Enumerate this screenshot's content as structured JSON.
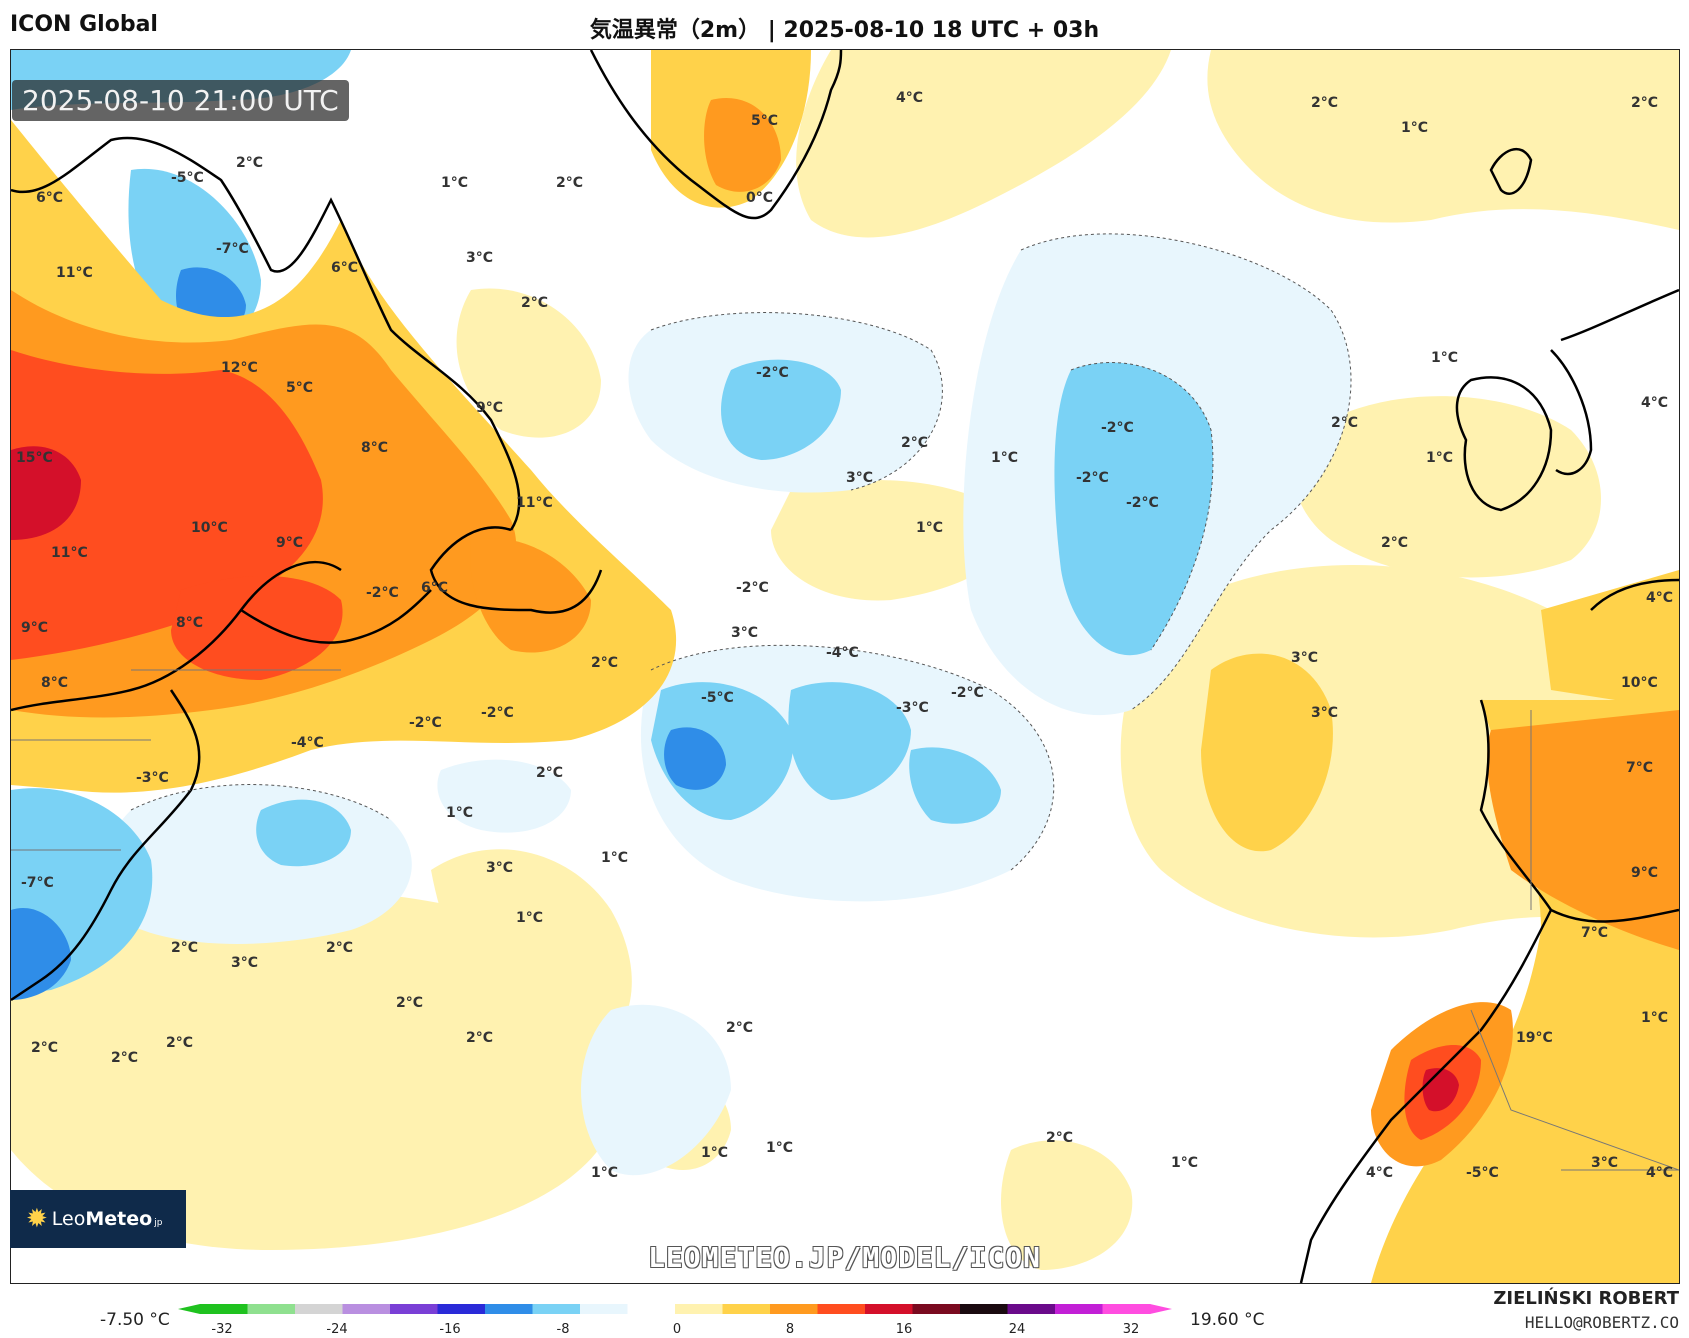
{
  "header": {
    "model": "ICON Global",
    "title": "気温異常（2m） | 2025-08-10 18 UTC + 03h"
  },
  "timestamp": "2025-08-10 21:00 UTC",
  "watermark": "LEOMETEO.JP/MODEL/ICON",
  "logo": {
    "brand_light": "Leo",
    "brand_bold": "Meteo",
    "suffix": "jp"
  },
  "author": {
    "name": "ZIELIŃSKI ROBERT",
    "email": "HELLO@ROBERTZ.CO"
  },
  "legend": {
    "min_label": "-7.50 °C",
    "max_label": "19.60 °C",
    "ticks": [
      "-32",
      "-24",
      "-16",
      "-8",
      "0",
      "8",
      "16",
      "24",
      "32"
    ],
    "colors": [
      "#1fc21f",
      "#8fe08f",
      "#d4d4d4",
      "#b98fe0",
      "#7a3fd6",
      "#2a2ad8",
      "#2f8de8",
      "#7ad2f5",
      "#e8f6fd",
      "#ffffff",
      "#fff2b0",
      "#ffd24a",
      "#ff9a1f",
      "#ff4d1f",
      "#d4102a",
      "#7a0a20",
      "#1a0a10",
      "#6a0a8a",
      "#c21fd6",
      "#ff4de0"
    ]
  },
  "map_labels": [
    {
      "text": "2°C"
    },
    {
      "text": "-5°C"
    },
    {
      "text": "6°C"
    },
    {
      "text": "-7°C"
    },
    {
      "text": "1°C"
    },
    {
      "text": "2°C"
    },
    {
      "text": "5°C"
    },
    {
      "text": "0°C"
    },
    {
      "text": "4°C"
    },
    {
      "text": "2°C"
    },
    {
      "text": "1°C"
    },
    {
      "text": "2°C"
    },
    {
      "text": "11°C"
    },
    {
      "text": "6°C"
    },
    {
      "text": "3°C"
    },
    {
      "text": "2°C"
    },
    {
      "text": "12°C"
    },
    {
      "text": "5°C"
    },
    {
      "text": "9°C"
    },
    {
      "text": "-2°C"
    },
    {
      "text": "1°C"
    },
    {
      "text": "15°C"
    },
    {
      "text": "8°C"
    },
    {
      "text": "2°C"
    },
    {
      "text": "1°C"
    },
    {
      "text": "-2°C"
    },
    {
      "text": "2°C"
    },
    {
      "text": "4°C"
    },
    {
      "text": "1°C"
    },
    {
      "text": "3°C"
    },
    {
      "text": "-2°C"
    },
    {
      "text": "-2°C"
    },
    {
      "text": "10°C"
    },
    {
      "text": "11°C"
    },
    {
      "text": "11°C"
    },
    {
      "text": "9°C"
    },
    {
      "text": "1°C"
    },
    {
      "text": "2°C"
    },
    {
      "text": "-2°C"
    },
    {
      "text": "6°C"
    },
    {
      "text": "-2°C"
    },
    {
      "text": "8°C"
    },
    {
      "text": "3°C"
    },
    {
      "text": "-4°C"
    },
    {
      "text": "4°C"
    },
    {
      "text": "9°C"
    },
    {
      "text": "2°C"
    },
    {
      "text": "3°C"
    },
    {
      "text": "8°C"
    },
    {
      "text": "-5°C"
    },
    {
      "text": "-3°C"
    },
    {
      "text": "-2°C"
    },
    {
      "text": "10°C"
    },
    {
      "text": "-2°C"
    },
    {
      "text": "-2°C"
    },
    {
      "text": "3°C"
    },
    {
      "text": "-4°C"
    },
    {
      "text": "-3°C"
    },
    {
      "text": "2°C"
    },
    {
      "text": "7°C"
    },
    {
      "text": "1°C"
    },
    {
      "text": "3°C"
    },
    {
      "text": "1°C"
    },
    {
      "text": "-7°C"
    },
    {
      "text": "9°C"
    },
    {
      "text": "1°C"
    },
    {
      "text": "2°C"
    },
    {
      "text": "3°C"
    },
    {
      "text": "2°C"
    },
    {
      "text": "7°C"
    },
    {
      "text": "2°C"
    },
    {
      "text": "2°C"
    },
    {
      "text": "2°C"
    },
    {
      "text": "2°C"
    },
    {
      "text": "2°C"
    },
    {
      "text": "2°C"
    },
    {
      "text": "19°C"
    },
    {
      "text": "1°C"
    },
    {
      "text": "2°C"
    },
    {
      "text": "1°C"
    },
    {
      "text": "1°C"
    },
    {
      "text": "1°C"
    },
    {
      "text": "1°C"
    },
    {
      "text": "4°C"
    },
    {
      "text": "3°C"
    },
    {
      "text": "-5°C"
    },
    {
      "text": "4°C"
    }
  ]
}
